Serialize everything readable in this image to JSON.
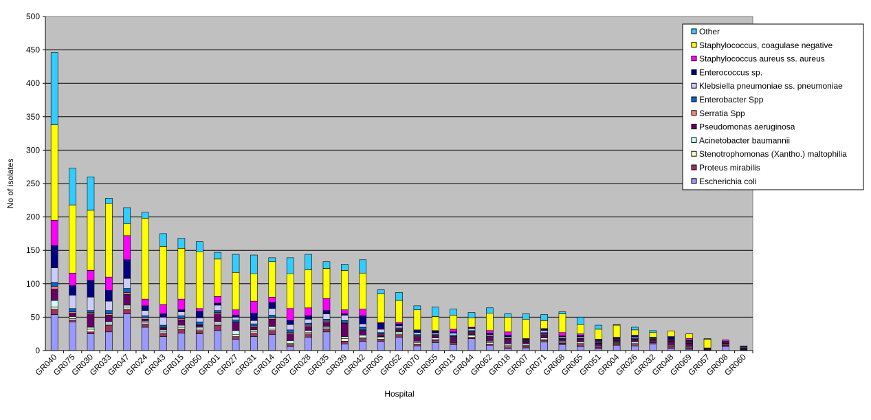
{
  "chart_data": {
    "type": "bar",
    "stacked": true,
    "title": "",
    "xlabel": "Hospital",
    "ylabel": "No of isolates",
    "ylim": [
      0,
      500
    ],
    "yticks": [
      0,
      50,
      100,
      150,
      200,
      250,
      300,
      350,
      400,
      450,
      500
    ],
    "grid": true,
    "legend_position": "right",
    "plot_background": "#c0c0c0",
    "categories": [
      "GR040",
      "GR075",
      "GR030",
      "GR033",
      "GR047",
      "GR024",
      "GR043",
      "GR015",
      "GR050",
      "GR001",
      "GR027",
      "GR031",
      "GR014",
      "GR037",
      "GR028",
      "GR035",
      "GR039",
      "GR042",
      "GR005",
      "GR052",
      "GR070",
      "GR055",
      "GR013",
      "GR044",
      "GR062",
      "GR018",
      "GR007",
      "GR071",
      "GR068",
      "GR065",
      "GR051",
      "GR004",
      "GR026",
      "GR032",
      "GR048",
      "GR069",
      "GR057",
      "GR008",
      "GR060"
    ],
    "series": [
      {
        "name": "Escherichia coli",
        "color": "#9999ff",
        "values": [
          54,
          43,
          25,
          28,
          55,
          35,
          21,
          26,
          25,
          30,
          17,
          21,
          24,
          6,
          20,
          28,
          10,
          14,
          14,
          20,
          7,
          12,
          9,
          18,
          8,
          3,
          4,
          13,
          9,
          6,
          3,
          8,
          7,
          10,
          3,
          2,
          1,
          6,
          1
        ]
      },
      {
        "name": "Proteus mirabilis",
        "color": "#993366",
        "values": [
          8,
          3,
          3,
          10,
          7,
          5,
          5,
          6,
          5,
          8,
          4,
          5,
          6,
          3,
          5,
          4,
          4,
          4,
          3,
          4,
          3,
          3,
          3,
          2,
          2,
          3,
          3,
          2,
          2,
          3,
          2,
          2,
          2,
          2,
          3,
          2,
          1,
          2,
          1
        ]
      },
      {
        "name": "Stenotrophomonas (Xantho.) maltophilia",
        "color": "#ffffcc",
        "values": [
          3,
          2,
          4,
          2,
          3,
          2,
          2,
          3,
          2,
          2,
          3,
          2,
          2,
          2,
          2,
          2,
          4,
          2,
          2,
          2,
          2,
          2,
          1,
          2,
          2,
          2,
          1,
          2,
          1,
          2,
          1,
          1,
          2,
          1,
          1,
          1,
          0,
          1,
          0
        ]
      },
      {
        "name": "Acinetobacter baumannii",
        "color": "#ccffff",
        "values": [
          10,
          3,
          3,
          3,
          3,
          2,
          3,
          3,
          3,
          3,
          6,
          3,
          4,
          4,
          3,
          2,
          3,
          3,
          2,
          2,
          2,
          2,
          1,
          2,
          2,
          2,
          2,
          2,
          2,
          2,
          1,
          1,
          2,
          1,
          1,
          1,
          0,
          0,
          0
        ]
      },
      {
        "name": "Pseudomonas aeruginosa",
        "color": "#660066",
        "values": [
          17,
          5,
          20,
          10,
          16,
          3,
          3,
          8,
          3,
          12,
          12,
          4,
          11,
          10,
          6,
          6,
          20,
          7,
          3,
          3,
          7,
          3,
          6,
          3,
          6,
          7,
          3,
          5,
          3,
          4,
          4,
          3,
          3,
          2,
          6,
          5,
          1,
          2,
          1
        ]
      },
      {
        "name": "Serratia Spp",
        "color": "#ff8080",
        "values": [
          4,
          2,
          2,
          2,
          3,
          2,
          1,
          2,
          1,
          2,
          1,
          2,
          2,
          2,
          2,
          2,
          1,
          1,
          1,
          1,
          1,
          1,
          1,
          1,
          1,
          1,
          1,
          1,
          1,
          1,
          1,
          1,
          1,
          1,
          1,
          1,
          0,
          1,
          0
        ]
      },
      {
        "name": "Enterobacter Spp",
        "color": "#0066cc",
        "values": [
          6,
          5,
          3,
          5,
          6,
          3,
          3,
          4,
          4,
          3,
          3,
          3,
          4,
          4,
          3,
          3,
          3,
          4,
          2,
          2,
          2,
          1,
          2,
          2,
          1,
          1,
          1,
          2,
          1,
          1,
          2,
          1,
          1,
          1,
          1,
          1,
          0,
          1,
          1
        ]
      },
      {
        "name": "Klebsiella pneumoniae ss. pneumoniae",
        "color": "#ccccff",
        "values": [
          22,
          20,
          20,
          14,
          15,
          8,
          12,
          6,
          6,
          8,
          4,
          5,
          10,
          8,
          6,
          8,
          8,
          5,
          5,
          3,
          3,
          2,
          3,
          3,
          2,
          2,
          1,
          3,
          2,
          2,
          1,
          1,
          2,
          1,
          1,
          1,
          0,
          1,
          1
        ]
      },
      {
        "name": "Enterococcus sp.",
        "color": "#000080",
        "values": [
          33,
          14,
          25,
          16,
          28,
          7,
          5,
          3,
          10,
          3,
          3,
          11,
          9,
          6,
          5,
          5,
          2,
          12,
          9,
          3,
          3,
          3,
          2,
          1,
          2,
          2,
          1,
          2,
          1,
          2,
          1,
          1,
          3,
          1,
          4,
          1,
          1,
          0,
          1
        ]
      },
      {
        "name": "Staphylococcus aureus ss. aureus",
        "color": "#ff00ff",
        "values": [
          38,
          19,
          15,
          20,
          36,
          10,
          14,
          16,
          4,
          10,
          8,
          18,
          8,
          18,
          12,
          18,
          6,
          10,
          1,
          2,
          1,
          1,
          4,
          1,
          4,
          5,
          1,
          1,
          5,
          2,
          1,
          1,
          0,
          0,
          0,
          3,
          0,
          2,
          0
        ]
      },
      {
        "name": "Staphylococcus, coagulase negative",
        "color": "#ffff00",
        "values": [
          143,
          102,
          90,
          110,
          18,
          121,
          87,
          76,
          85,
          56,
          56,
          41,
          53,
          52,
          57,
          45,
          59,
          54,
          43,
          33,
          30,
          21,
          21,
          14,
          26,
          22,
          29,
          12,
          28,
          14,
          15,
          18,
          8,
          7,
          8,
          7,
          13,
          0,
          0
        ]
      },
      {
        "name": "Other",
        "color": "#33ccff",
        "values": [
          108,
          55,
          50,
          8,
          24,
          9,
          19,
          15,
          15,
          10,
          27,
          28,
          6,
          24,
          23,
          10,
          9,
          20,
          6,
          12,
          6,
          14,
          9,
          8,
          8,
          5,
          8,
          9,
          3,
          11,
          6,
          1,
          4,
          3,
          0,
          0,
          1,
          0,
          1
        ]
      }
    ]
  }
}
